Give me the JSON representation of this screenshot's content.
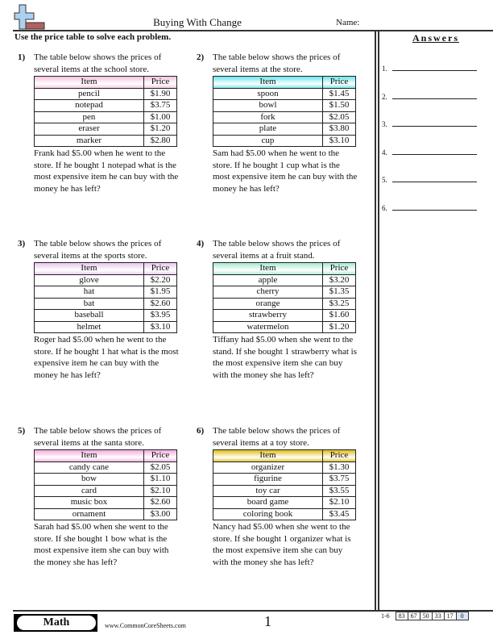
{
  "header": {
    "title": "Buying With Change",
    "name_label": "Name:"
  },
  "instructions": "Use the price table to solve each problem.",
  "table_headers": {
    "item": "Item",
    "price": "Price"
  },
  "problems": [
    {
      "number": "1)",
      "intro": "The table below shows the prices of several items at the school store.",
      "header_color": "#f7c6de",
      "items": [
        [
          "pencil",
          "$1.90"
        ],
        [
          "notepad",
          "$3.75"
        ],
        [
          "pen",
          "$1.00"
        ],
        [
          "eraser",
          "$1.20"
        ],
        [
          "marker",
          "$2.80"
        ]
      ],
      "question": "Frank had $5.00 when he went to the store. If he bought 1 notepad what is the most expensive item he can buy with the money he has left?"
    },
    {
      "number": "2)",
      "intro": "The table below shows the prices of several items at the store.",
      "header_color": "#6fe8ee",
      "items": [
        [
          "spoon",
          "$1.45"
        ],
        [
          "bowl",
          "$1.50"
        ],
        [
          "fork",
          "$2.05"
        ],
        [
          "plate",
          "$3.80"
        ],
        [
          "cup",
          "$3.10"
        ]
      ],
      "question": "Sam had $5.00 when he went to the store. If he bought 1 cup what is the most expensive item he can buy with the money he has left?"
    },
    {
      "number": "3)",
      "intro": "The table below shows the prices of several items at the sports store.",
      "header_color": "#ecc8f0",
      "items": [
        [
          "glove",
          "$2.20"
        ],
        [
          "hat",
          "$1.95"
        ],
        [
          "bat",
          "$2.60"
        ],
        [
          "baseball",
          "$3.95"
        ],
        [
          "helmet",
          "$3.10"
        ]
      ],
      "question": "Roger had $5.00 when he went to the store. If he bought 1 hat what is the most expensive item he can buy with the money he has left?"
    },
    {
      "number": "4)",
      "intro": "The table below shows the prices of several items at a fruit stand.",
      "header_color": "#a8ecd0",
      "items": [
        [
          "apple",
          "$3.20"
        ],
        [
          "cherry",
          "$1.35"
        ],
        [
          "orange",
          "$3.25"
        ],
        [
          "strawberry",
          "$1.60"
        ],
        [
          "watermelon",
          "$1.20"
        ]
      ],
      "question": "Tiffany had $5.00 when she went to the stand. If she bought 1 strawberry what is the most expensive item she can buy with the money she has left?"
    },
    {
      "number": "5)",
      "intro": "The table below shows the prices of several items at the santa store.",
      "header_color": "#f4b0e0",
      "items": [
        [
          "candy cane",
          "$2.05"
        ],
        [
          "bow",
          "$1.10"
        ],
        [
          "card",
          "$2.10"
        ],
        [
          "music box",
          "$2.60"
        ],
        [
          "ornament",
          "$3.00"
        ]
      ],
      "question": "Sarah had $5.00 when she went to the store. If she bought 1 bow what is the most expensive item she can buy with the money she has left?"
    },
    {
      "number": "6)",
      "intro": "The table below shows the prices of several items at a toy store.",
      "header_color": "#e0c020",
      "items": [
        [
          "organizer",
          "$1.30"
        ],
        [
          "figurine",
          "$3.75"
        ],
        [
          "toy car",
          "$3.55"
        ],
        [
          "board game",
          "$2.10"
        ],
        [
          "coloring book",
          "$3.45"
        ]
      ],
      "question": "Nancy had $5.00 when she went to the store. If she bought 1 organizer what is the most expensive item she can buy with the money she has left?"
    }
  ],
  "answers": {
    "title": "Answers",
    "labels": [
      "1.",
      "2.",
      "3.",
      "4.",
      "5.",
      "6."
    ]
  },
  "footer": {
    "subject": "Math",
    "site": "www.CommonCoreSheets.com",
    "page": "1",
    "range": "1-6",
    "scores": [
      "83",
      "67",
      "50",
      "33",
      "17",
      "0"
    ]
  }
}
